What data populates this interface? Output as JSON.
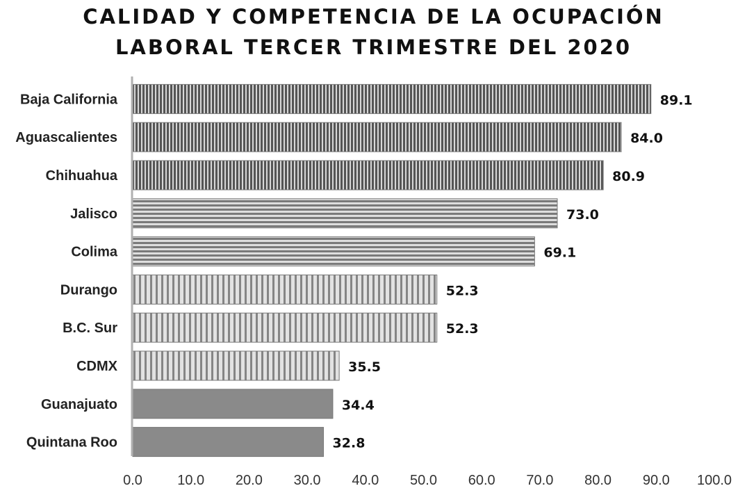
{
  "chart_data": {
    "type": "bar",
    "orientation": "horizontal",
    "title_lines": [
      "CALIDAD Y COMPETENCIA DE LA OCUPACIÓN",
      "LABORAL TERCER TRIMESTRE DEL 2020"
    ],
    "categories": [
      "Baja California",
      "Aguascalientes",
      "Chihuahua",
      "Jalisco",
      "Colima",
      "Durango",
      "B.C. Sur",
      "CDMX",
      "Guanajuato",
      "Quintana Roo"
    ],
    "values": [
      89.1,
      84.0,
      80.9,
      73.0,
      69.1,
      52.3,
      52.3,
      35.5,
      34.4,
      32.8
    ],
    "value_labels": [
      "89.1",
      "84.0",
      "80.9",
      "73.0",
      "69.1",
      "52.3",
      "52.3",
      "35.5",
      "34.4",
      "32.8"
    ],
    "patterns": [
      "dense-vertical",
      "dense-vertical",
      "dense-vertical",
      "horizontal-stripes",
      "horizontal-stripes",
      "vertical-stripes",
      "vertical-stripes",
      "vertical-stripes",
      "solid",
      "solid"
    ],
    "xlim": [
      0,
      100
    ],
    "xticks": [
      "0.0",
      "10.0",
      "20.0",
      "30.0",
      "40.0",
      "50.0",
      "60.0",
      "70.0",
      "80.0",
      "90.0",
      "100.0"
    ],
    "xlabel": "",
    "ylabel": "",
    "grid": false,
    "legend": false,
    "colors": {
      "bar_dark": "#6b6b6b",
      "bar_light": "#d6d6d6",
      "bar_solid": "#8a8a8a",
      "axis": "#b0b0b0"
    }
  }
}
